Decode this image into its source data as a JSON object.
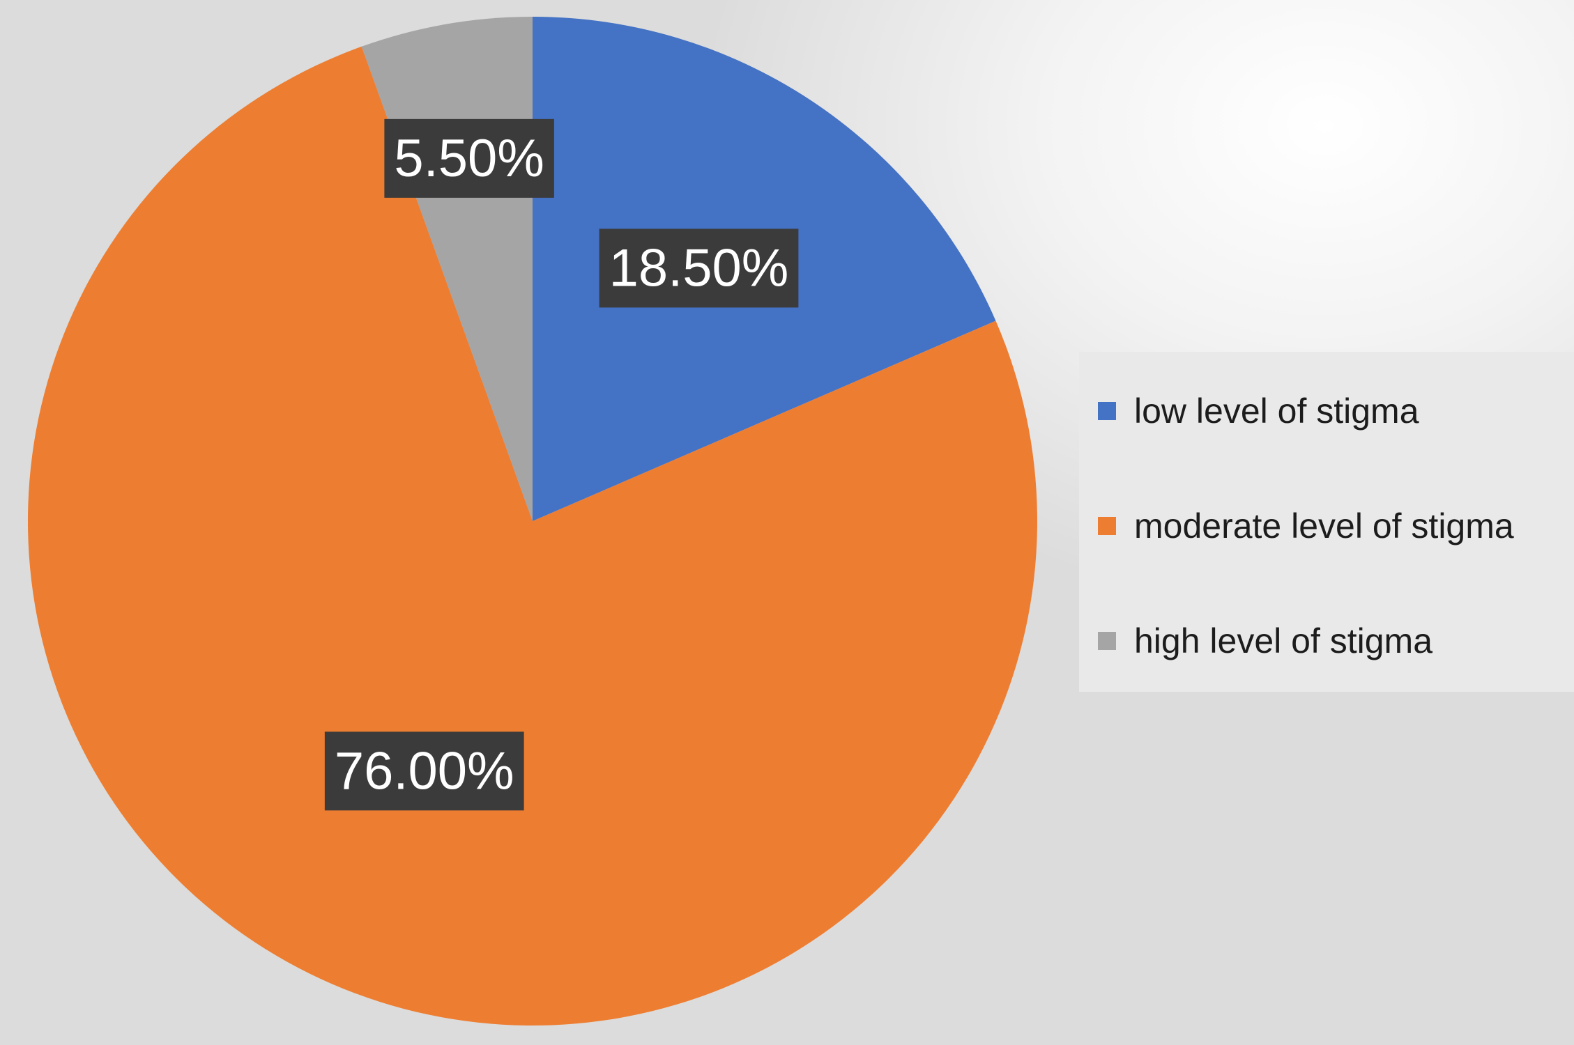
{
  "chart_data": {
    "type": "pie",
    "categories": [
      "low level of stigma",
      "moderate level of stigma",
      "high level of stigma"
    ],
    "values": [
      18.5,
      76.0,
      5.5
    ],
    "data_labels": [
      "18.50%",
      "76.00%",
      "5.50%"
    ],
    "colors": [
      "#4472c4",
      "#ed7d31",
      "#a5a5a5"
    ],
    "title": "",
    "legend_position": "right",
    "start_angle": "12 o'clock, clockwise"
  }
}
